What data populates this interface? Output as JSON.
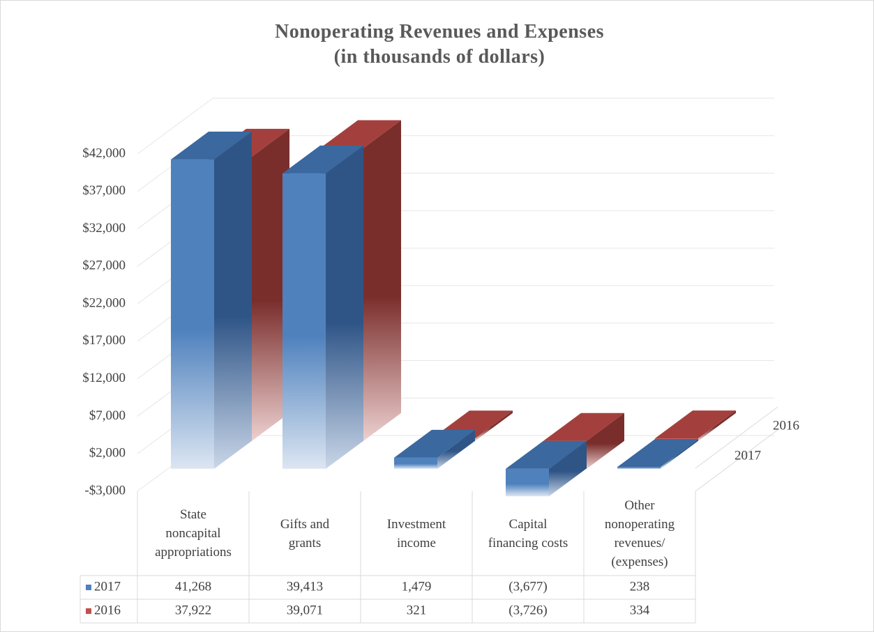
{
  "chart_data": {
    "type": "bar3d",
    "title": "Nonoperating Revenues and Expenses\n(in thousands of dollars)",
    "categories": [
      "State\nnoncapital\nappropriations",
      "Gifts and\ngrants",
      "Investment\nincome",
      "Capital\nfinancing costs",
      "Other\nnonoperating\nrevenues/\n(expenses)"
    ],
    "series": [
      {
        "name": "2017",
        "color": "#4f81bd",
        "values": [
          41268,
          39413,
          1479,
          -3677,
          238
        ],
        "value_labels": [
          "41,268",
          "39,413",
          "1,479",
          "(3,677)",
          "238"
        ]
      },
      {
        "name": "2016",
        "color": "#c0504d",
        "values": [
          37922,
          39071,
          321,
          -3726,
          334
        ],
        "value_labels": [
          "37,922",
          "39,071",
          "321",
          "(3,726)",
          "334"
        ]
      }
    ],
    "ylim": [
      -3000,
      42000
    ],
    "yticks": [
      {
        "value": -3000,
        "label": "-$3,000"
      },
      {
        "value": 2000,
        "label": "$2,000"
      },
      {
        "value": 7000,
        "label": "$7,000"
      },
      {
        "value": 12000,
        "label": "$12,000"
      },
      {
        "value": 17000,
        "label": "$17,000"
      },
      {
        "value": 22000,
        "label": "$22,000"
      },
      {
        "value": 27000,
        "label": "$27,000"
      },
      {
        "value": 32000,
        "label": "$32,000"
      },
      {
        "value": 37000,
        "label": "$37,000"
      },
      {
        "value": 42000,
        "label": "$42,000"
      }
    ],
    "grid": true
  }
}
